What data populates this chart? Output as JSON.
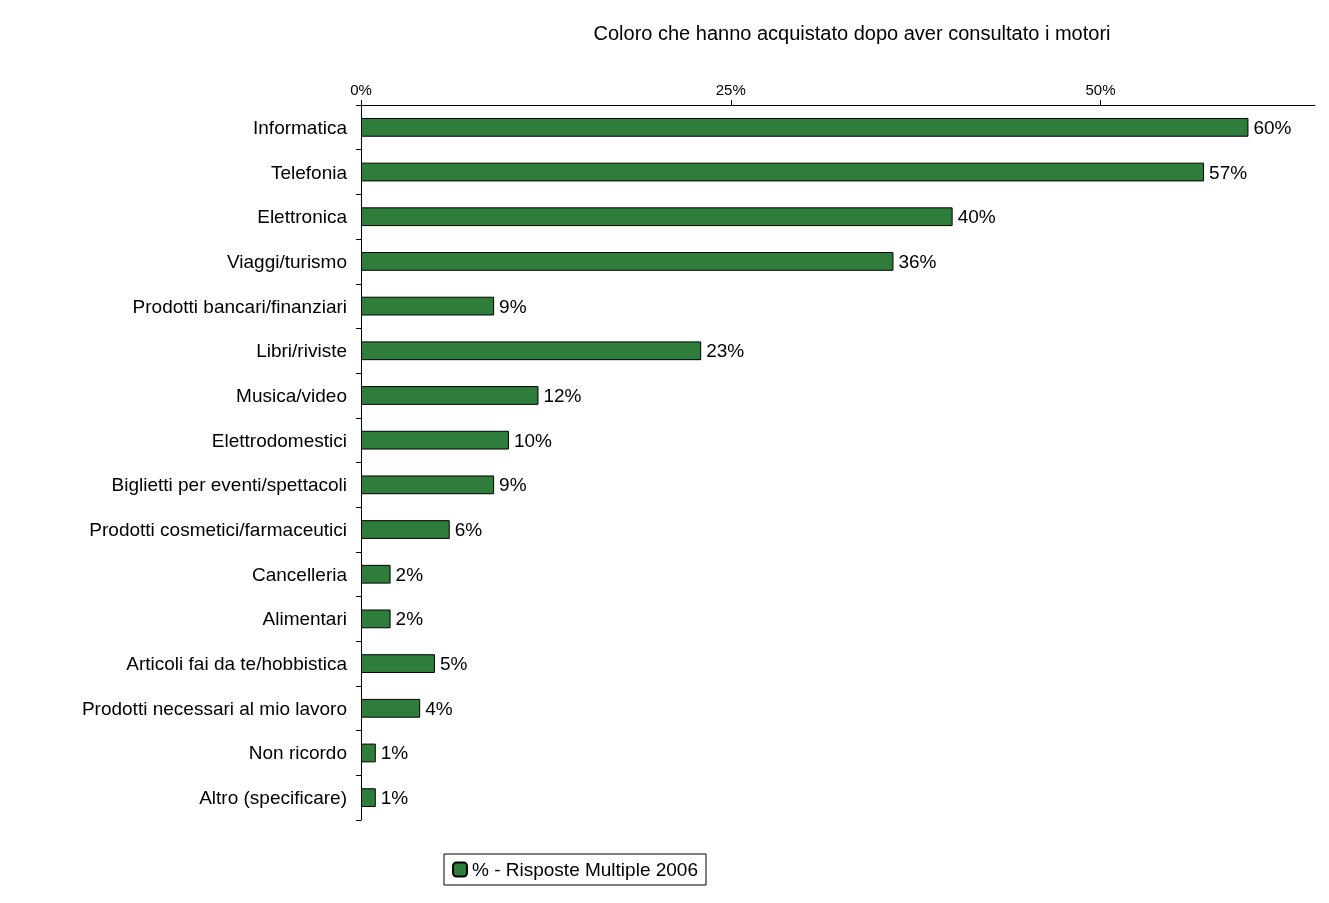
{
  "chart_data": {
    "type": "bar",
    "orientation": "horizontal",
    "title": "Coloro che hanno acquistato dopo aver consultato i motori",
    "categories": [
      "Informatica",
      "Telefonia",
      "Elettronica",
      "Viaggi/turismo",
      "Prodotti bancari/finanziari",
      "Libri/riviste",
      "Musica/video",
      "Elettrodomestici",
      "Biglietti per eventi/spettacoli",
      "Prodotti cosmetici/farmaceutici",
      "Cancelleria",
      "Alimentari",
      "Articoli fai da te/hobbistica",
      "Prodotti necessari al mio lavoro",
      "Non ricordo",
      "Altro (specificare)"
    ],
    "series": [
      {
        "name": "% - Risposte Multiple 2006",
        "color": "#2e7d3b",
        "values": [
          60,
          57,
          40,
          36,
          9,
          23,
          12,
          10,
          9,
          6,
          2,
          2,
          5,
          4,
          1,
          1
        ],
        "value_labels": [
          "60%",
          "57%",
          "40%",
          "36%",
          "9%",
          "23%",
          "12%",
          "10%",
          "9%",
          "6%",
          "2%",
          "2%",
          "5%",
          "4%",
          "1%",
          "1%"
        ]
      }
    ],
    "xlim": [
      0,
      64.5
    ],
    "xticks": [
      {
        "value": 0,
        "label": "0%"
      },
      {
        "value": 25,
        "label": "25%"
      },
      {
        "value": 50,
        "label": "50%"
      }
    ],
    "grid": false,
    "legend": "bottom"
  }
}
